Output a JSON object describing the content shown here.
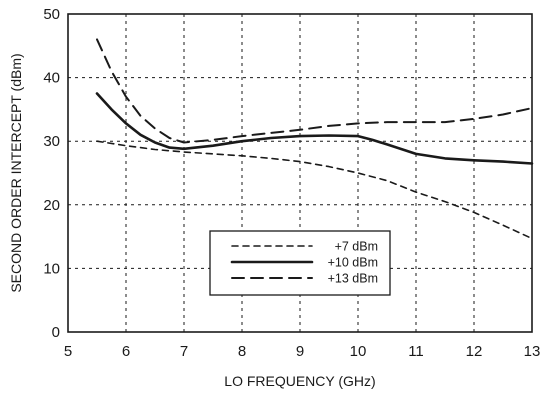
{
  "chart_data": {
    "type": "line",
    "title": "",
    "xlabel": "LO FREQUENCY (GHz)",
    "ylabel": "SECOND ORDER INTERCEPT (dBm)",
    "xlim": [
      5,
      13
    ],
    "ylim": [
      0,
      50
    ],
    "xticks": [
      "5",
      "6",
      "7",
      "8",
      "9",
      "10",
      "11",
      "12",
      "13"
    ],
    "yticks": [
      "0",
      "10",
      "20",
      "30",
      "40",
      "50"
    ],
    "grid": true,
    "legend_position": "lower-right",
    "series": [
      {
        "name": "+7 dBm",
        "style": "short-dash",
        "x": [
          5.5,
          6.0,
          6.5,
          7.0,
          7.5,
          8.0,
          8.5,
          9.0,
          9.5,
          10.0,
          10.5,
          11.0,
          11.5,
          12.0,
          12.5,
          13.0
        ],
        "y": [
          30.0,
          29.3,
          28.7,
          28.3,
          28.0,
          27.7,
          27.3,
          26.8,
          26.0,
          25.0,
          23.8,
          22.0,
          20.5,
          18.8,
          16.8,
          14.7
        ]
      },
      {
        "name": "+10 dBm",
        "style": "solid",
        "x": [
          5.5,
          5.75,
          6.0,
          6.25,
          6.5,
          6.75,
          7.0,
          7.5,
          8.0,
          8.5,
          9.0,
          9.5,
          10.0,
          10.25,
          10.5,
          11.0,
          11.5,
          12.0,
          12.5,
          13.0
        ],
        "y": [
          37.5,
          35.0,
          32.8,
          31.0,
          29.8,
          29.0,
          28.8,
          29.3,
          30.0,
          30.5,
          30.8,
          30.9,
          30.8,
          30.2,
          29.5,
          28.0,
          27.3,
          27.0,
          26.8,
          26.5
        ]
      },
      {
        "name": "+13 dBm",
        "style": "long-dash",
        "x": [
          5.5,
          5.75,
          6.0,
          6.25,
          6.5,
          6.75,
          7.0,
          7.5,
          8.0,
          8.5,
          9.0,
          9.5,
          10.0,
          10.5,
          11.0,
          11.5,
          12.0,
          12.5,
          13.0
        ],
        "y": [
          46.0,
          41.0,
          37.0,
          34.0,
          32.0,
          30.5,
          29.8,
          30.2,
          30.8,
          31.3,
          31.8,
          32.4,
          32.8,
          33.0,
          33.0,
          33.0,
          33.5,
          34.2,
          35.2
        ]
      }
    ]
  }
}
